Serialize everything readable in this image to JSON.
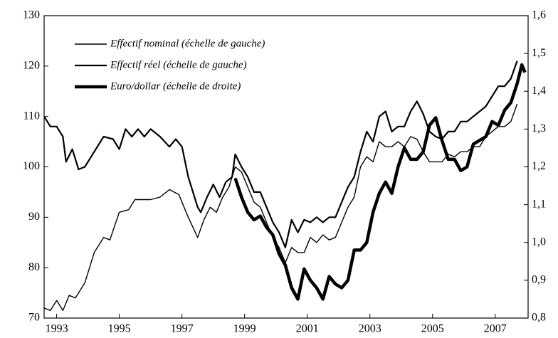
{
  "chart_data": {
    "type": "line",
    "xlim": [
      1992.6,
      2008.05
    ],
    "xticks": [
      1993,
      1995,
      1997,
      1999,
      2001,
      2003,
      2005,
      2007
    ],
    "ylim": [
      70,
      130
    ],
    "yticks": [
      70,
      80,
      90,
      100,
      110,
      120,
      130
    ],
    "y2lim": [
      0.8,
      1.6
    ],
    "y2ticks": [
      {
        "value": 0.8,
        "label": "0,8"
      },
      {
        "value": 0.9,
        "label": "0,9"
      },
      {
        "value": 1.0,
        "label": "1,0"
      },
      {
        "value": 1.1,
        "label": "1,1"
      },
      {
        "value": 1.2,
        "label": "1,2"
      },
      {
        "value": 1.3,
        "label": "1,3"
      },
      {
        "value": 1.4,
        "label": "1,4"
      },
      {
        "value": 1.5,
        "label": "1,5"
      },
      {
        "value": 1.6,
        "label": "1,6"
      }
    ],
    "legend": "top-left",
    "series": [
      {
        "name": "Effectif nominal (échelle de gauche)",
        "color": "#000000",
        "width": 1.4,
        "x": [
          1992.6,
          1992.8,
          1993.0,
          1993.2,
          1993.4,
          1993.6,
          1993.9,
          1994.2,
          1994.5,
          1994.7,
          1995.0,
          1995.3,
          1995.5,
          1995.8,
          1996.0,
          1996.3,
          1996.6,
          1996.9,
          1997.2,
          1997.5,
          1997.7,
          1997.9,
          1998.1,
          1998.3,
          1998.5,
          1998.7,
          1998.9,
          1999.1,
          1999.3,
          1999.5,
          1999.7,
          1999.9,
          2000.1,
          2000.3,
          2000.5,
          2000.7,
          2000.9,
          2001.1,
          2001.3,
          2001.5,
          2001.7,
          2001.9,
          2002.1,
          2002.3,
          2002.5,
          2002.7,
          2002.9,
          2003.1,
          2003.3,
          2003.5,
          2003.7,
          2003.9,
          2004.1,
          2004.3,
          2004.5,
          2004.7,
          2004.9,
          2005.1,
          2005.3,
          2005.5,
          2005.7,
          2005.9,
          2006.1,
          2006.3,
          2006.5,
          2006.7,
          2006.9,
          2007.1,
          2007.3,
          2007.5,
          2007.7
        ],
        "values": [
          72,
          71.5,
          73.5,
          71.5,
          74.5,
          74,
          77,
          83,
          86,
          85.5,
          91,
          91.5,
          93.5,
          93.5,
          93.5,
          94,
          95.5,
          94.5,
          90,
          86,
          89.5,
          92,
          91,
          94,
          96,
          100,
          99,
          96,
          93,
          92,
          89,
          86,
          84,
          81,
          84,
          83,
          83,
          86,
          85,
          86.5,
          85.5,
          86,
          89,
          92,
          94,
          100,
          102,
          101,
          105,
          104,
          104,
          105,
          104,
          106,
          105.5,
          103,
          101,
          101,
          101,
          102.5,
          102,
          103,
          103,
          104,
          104,
          106,
          107,
          108,
          108,
          109,
          112.5
        ]
      },
      {
        "name": "Effectif réel (échelle de gauche)",
        "color": "#000000",
        "width": 2.2,
        "x": [
          1992.6,
          1992.8,
          1993.0,
          1993.2,
          1993.3,
          1993.5,
          1993.7,
          1993.9,
          1994.2,
          1994.5,
          1994.8,
          1995.0,
          1995.2,
          1995.4,
          1995.6,
          1995.8,
          1996.0,
          1996.3,
          1996.6,
          1996.8,
          1997.0,
          1997.2,
          1997.5,
          1997.6,
          1997.8,
          1998.0,
          1998.2,
          1998.4,
          1998.6,
          1998.7,
          1998.9,
          1999.1,
          1999.3,
          1999.5,
          1999.7,
          1999.9,
          2000.1,
          2000.3,
          2000.5,
          2000.7,
          2000.9,
          2001.1,
          2001.3,
          2001.5,
          2001.7,
          2001.9,
          2002.1,
          2002.3,
          2002.5,
          2002.7,
          2002.9,
          2003.1,
          2003.3,
          2003.5,
          2003.7,
          2003.9,
          2004.1,
          2004.3,
          2004.5,
          2004.7,
          2004.9,
          2005.1,
          2005.3,
          2005.5,
          2005.7,
          2005.9,
          2006.1,
          2006.3,
          2006.5,
          2006.7,
          2006.9,
          2007.1,
          2007.3,
          2007.5,
          2007.7
        ],
        "values": [
          110,
          108,
          108,
          106,
          101,
          103.5,
          99.5,
          100,
          103,
          106,
          105.5,
          103.5,
          107.5,
          106,
          107.5,
          106,
          107.5,
          106,
          104,
          105.5,
          104,
          98,
          92,
          91,
          94,
          96.5,
          94,
          97,
          98,
          102.5,
          100,
          98,
          95,
          95,
          92,
          89,
          87,
          84,
          89.5,
          87,
          89.5,
          89,
          90,
          89,
          90,
          90,
          93,
          96,
          98,
          103,
          107,
          105,
          110,
          111,
          107,
          108,
          108,
          111,
          113,
          110.5,
          107,
          106,
          105.5,
          107,
          107,
          109,
          109,
          110,
          111,
          112,
          114,
          116,
          116,
          117.5,
          121
        ]
      },
      {
        "name": "Euro/dollar (échelle de droite)",
        "color": "#000000",
        "width": 4.5,
        "axis": "y2",
        "x": [
          1998.7,
          1998.9,
          1999.1,
          1999.3,
          1999.5,
          1999.7,
          1999.9,
          2000.1,
          2000.3,
          2000.5,
          2000.7,
          2000.9,
          2001.1,
          2001.3,
          2001.5,
          2001.7,
          2001.9,
          2002.1,
          2002.3,
          2002.5,
          2002.7,
          2002.9,
          2003.1,
          2003.3,
          2003.5,
          2003.7,
          2003.9,
          2004.1,
          2004.3,
          2004.5,
          2004.7,
          2004.9,
          2005.1,
          2005.3,
          2005.5,
          2005.7,
          2005.9,
          2006.1,
          2006.3,
          2006.5,
          2006.7,
          2006.9,
          2007.1,
          2007.3,
          2007.5,
          2007.7,
          2007.85,
          2007.95
        ],
        "values": [
          1.17,
          1.12,
          1.08,
          1.06,
          1.07,
          1.04,
          1.02,
          0.97,
          0.94,
          0.88,
          0.85,
          0.93,
          0.9,
          0.88,
          0.85,
          0.91,
          0.89,
          0.88,
          0.9,
          0.98,
          0.98,
          1.0,
          1.08,
          1.13,
          1.16,
          1.13,
          1.2,
          1.25,
          1.22,
          1.22,
          1.24,
          1.31,
          1.33,
          1.27,
          1.22,
          1.22,
          1.19,
          1.2,
          1.26,
          1.27,
          1.28,
          1.32,
          1.31,
          1.35,
          1.37,
          1.42,
          1.47,
          1.45
        ]
      }
    ]
  }
}
